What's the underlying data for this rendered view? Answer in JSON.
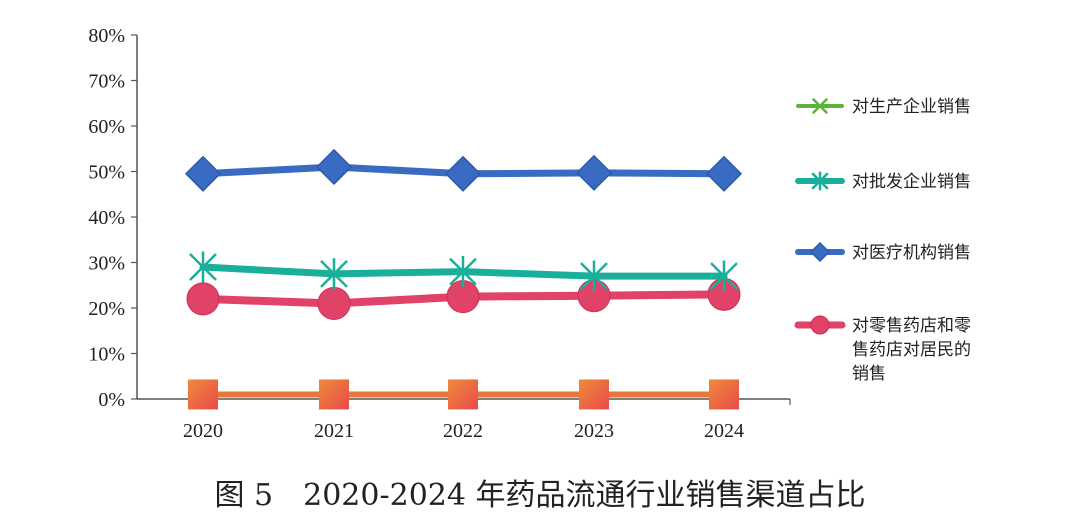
{
  "caption": "图 5　2020-2024 年药品流通行业销售渠道占比",
  "chart_data": {
    "type": "line",
    "categories": [
      "2020",
      "2021",
      "2022",
      "2023",
      "2024"
    ],
    "ylim": [
      0,
      80
    ],
    "yticks": [
      "0%",
      "10%",
      "20%",
      "30%",
      "40%",
      "50%",
      "60%",
      "70%",
      "80%"
    ],
    "grid": false,
    "legend_position": "right",
    "series": [
      {
        "name": "对生产企业销售",
        "values": [
          1,
          1,
          1,
          1,
          1
        ],
        "color": "#5db33a",
        "marker": "x"
      },
      {
        "name": "对批发企业销售",
        "values": [
          29,
          27.5,
          28,
          27,
          27
        ],
        "color": "#1aaf9b",
        "marker": "asterisk"
      },
      {
        "name": "对医疗机构销售",
        "values": [
          49.5,
          51,
          49.5,
          49.7,
          49.5
        ],
        "color": "#3a6bc2",
        "marker": "diamond"
      },
      {
        "name": "对零售药店和零售药店对居民的销售",
        "legend_lines": [
          "对零售药店和零",
          "售药店对居民的",
          "销售"
        ],
        "values": [
          22,
          21,
          22.5,
          22.7,
          23
        ],
        "color": "#e04268",
        "marker": "circle"
      }
    ],
    "extra_series": [
      {
        "values": [
          1,
          1,
          1,
          1,
          1
        ],
        "color": "#e8763a",
        "marker": "square"
      }
    ]
  }
}
